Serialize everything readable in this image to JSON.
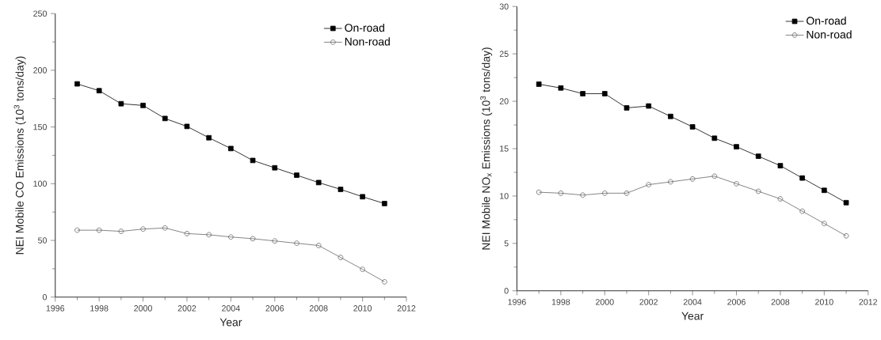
{
  "chart_data": [
    {
      "type": "line",
      "xlabel": "Year",
      "ylabel": "NEI Mobile CO Emissions (10$^{3}$ tons/day)",
      "x": [
        1997,
        1998,
        1999,
        2000,
        2001,
        2002,
        2003,
        2004,
        2005,
        2006,
        2007,
        2008,
        2009,
        2010,
        2011
      ],
      "series": [
        {
          "name": "On-road",
          "color": "#000000",
          "marker": "square",
          "values": [
            188,
            182,
            170.5,
            169,
            157.5,
            150.5,
            140.5,
            131,
            120.5,
            114,
            107.5,
            101,
            95,
            88.5,
            82.5
          ]
        },
        {
          "name": "Non-road",
          "color": "#666666",
          "marker": "circle",
          "values": [
            59,
            59,
            58,
            60,
            61,
            56,
            55,
            53,
            51.5,
            49.5,
            47.5,
            45.5,
            35,
            24.5,
            13.5
          ]
        }
      ],
      "xlim": [
        1996,
        2012
      ],
      "xticks": [
        1996,
        1998,
        2000,
        2002,
        2004,
        2006,
        2008,
        2010,
        2012
      ],
      "ylim": [
        0,
        250
      ],
      "yticks": [
        0,
        50,
        100,
        150,
        200,
        250
      ],
      "legend": "top right"
    },
    {
      "type": "line",
      "xlabel": "Year",
      "ylabel": "NEI Mobile NO$_{x}$ Emissions (10$^{3}$ tons/day)",
      "x": [
        1997,
        1998,
        1999,
        2000,
        2001,
        2002,
        2003,
        2004,
        2005,
        2006,
        2007,
        2008,
        2009,
        2010,
        2011
      ],
      "series": [
        {
          "name": "On-road",
          "color": "#000000",
          "marker": "square",
          "values": [
            21.8,
            21.4,
            20.8,
            20.8,
            19.3,
            19.5,
            18.4,
            17.3,
            16.1,
            15.2,
            14.2,
            13.2,
            11.9,
            10.6,
            9.3
          ]
        },
        {
          "name": "Non-road",
          "color": "#666666",
          "marker": "circle",
          "values": [
            10.4,
            10.3,
            10.1,
            10.3,
            10.3,
            11.2,
            11.5,
            11.8,
            12.1,
            11.3,
            10.5,
            9.7,
            8.4,
            7.1,
            5.8
          ]
        }
      ],
      "xlim": [
        1996,
        2012
      ],
      "xticks": [
        1996,
        1998,
        2000,
        2002,
        2004,
        2006,
        2008,
        2010,
        2012
      ],
      "ylim": [
        0,
        30
      ],
      "yticks": [
        0,
        5,
        10,
        15,
        20,
        25,
        30
      ],
      "legend": "top right"
    }
  ]
}
